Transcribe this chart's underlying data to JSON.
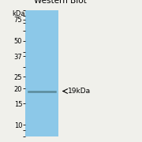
{
  "title": "Western Blot",
  "kda_label": "kDa",
  "markers": [
    75,
    50,
    37,
    25,
    20,
    15,
    10
  ],
  "band_kda": 19,
  "band_label": "19kDa",
  "lane_color": "#8cc8e8",
  "bg_color": "#f0f0eb",
  "band_line_color": "#5a8a9a",
  "band_thickness": 1.8,
  "title_fontsize": 7.5,
  "marker_fontsize": 6.0,
  "annotation_fontsize": 6.5,
  "y_min": 8,
  "y_max": 90
}
